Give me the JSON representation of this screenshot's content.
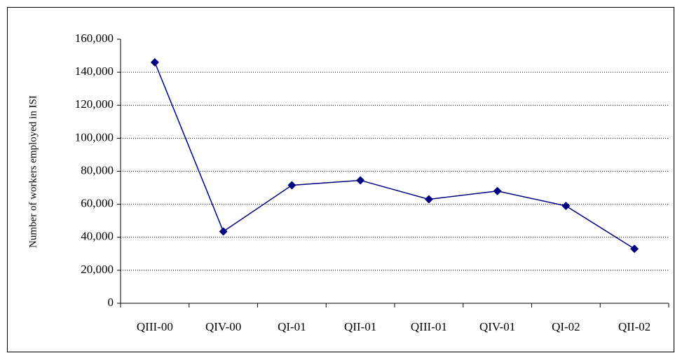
{
  "chart_data": {
    "type": "line",
    "y_label": "Number of workers employed in ISI",
    "categories": [
      "QIII-00",
      "QIV-00",
      "QI-01",
      "QII-01",
      "QIII-01",
      "QIV-01",
      "QI-02",
      "QII-02"
    ],
    "series": [
      {
        "color": "#000080",
        "values": [
          146000,
          43500,
          71500,
          74500,
          63000,
          68000,
          59000,
          33000
        ]
      }
    ],
    "ylim": [
      0,
      160000
    ],
    "yticks": [
      0,
      {
        "value": 20000,
        "label": "20,000"
      },
      {
        "value": 40000,
        "label": "40,000"
      },
      {
        "value": 60000,
        "label": "60,000"
      },
      {
        "value": 80000,
        "label": "80,000"
      },
      {
        "value": 100000,
        "label": "100,000"
      },
      {
        "value": 120000,
        "label": "120,000"
      },
      {
        "value": 140000,
        "label": "140,000"
      },
      {
        "value": 160000,
        "label": "160,000"
      }
    ],
    "grid": true
  }
}
